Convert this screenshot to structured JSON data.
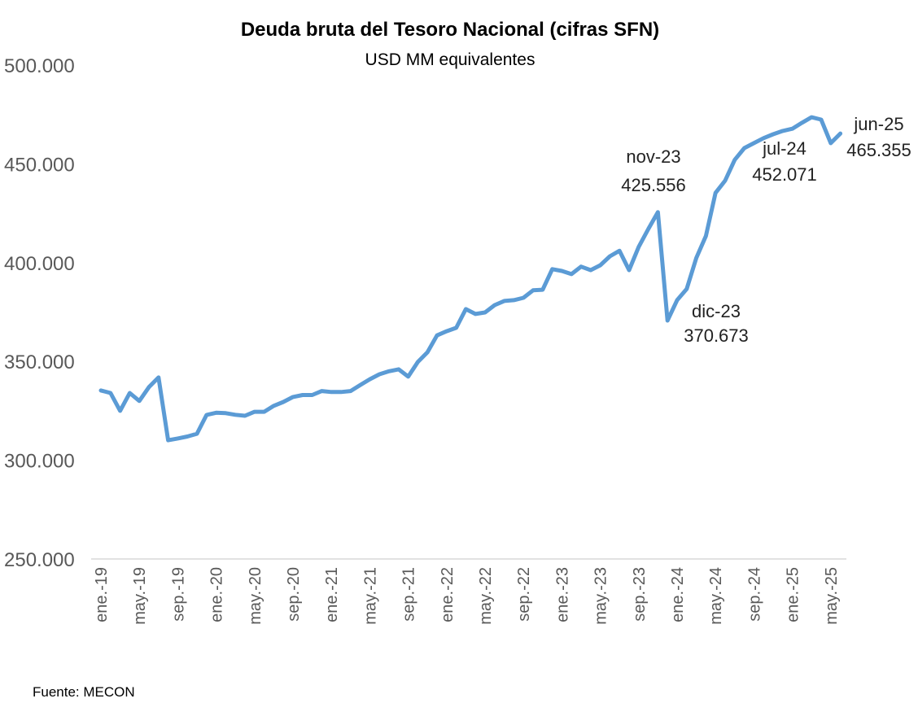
{
  "chart_data": {
    "type": "line",
    "title": "Deuda bruta del Tesoro Nacional (cifras SFN)",
    "subtitle": "USD MM equivalentes",
    "xlabel": "",
    "ylabel": "",
    "ylim": [
      250000,
      500000
    ],
    "yticks": [
      250000,
      300000,
      350000,
      400000,
      450000,
      500000
    ],
    "ytick_labels": [
      "250.000",
      "300.000",
      "350.000",
      "400.000",
      "450.000",
      "500.000"
    ],
    "grid": false,
    "x_start": "ene.-19",
    "x_end": "jun.-25",
    "xtick_every": 4,
    "xtick_labels": [
      "ene.-19",
      "may.-19",
      "sep.-19",
      "ene.-20",
      "may.-20",
      "sep.-20",
      "ene.-21",
      "may.-21",
      "sep.-21",
      "ene.-22",
      "may.-22",
      "sep.-22",
      "ene.-23",
      "may.-23",
      "sep.-23",
      "ene.-24",
      "may.-24",
      "sep.-24",
      "ene.-25",
      "may.-25"
    ],
    "series": [
      {
        "name": "Deuda bruta",
        "color": "#5B9BD5",
        "values": [
          335300,
          334000,
          325000,
          334000,
          330000,
          337000,
          341900,
          310100,
          311000,
          312000,
          313400,
          322900,
          324000,
          323800,
          323000,
          322500,
          324500,
          324500,
          327500,
          329500,
          332000,
          333000,
          333000,
          335000,
          334500,
          334500,
          335000,
          338000,
          341000,
          343500,
          345000,
          346000,
          342300,
          349700,
          354600,
          363200,
          365300,
          367000,
          376500,
          374000,
          374800,
          378500,
          380600,
          381000,
          382200,
          386000,
          386300,
          396700,
          395800,
          394200,
          398000,
          396200,
          398700,
          403200,
          406000,
          396200,
          408000,
          417000,
          425556,
          370673,
          381000,
          386700,
          402400,
          413500,
          435300,
          441500,
          452071,
          458000,
          460500,
          463000,
          465000,
          466700,
          467800,
          470800,
          473600,
          472400,
          460500,
          465355
        ]
      }
    ],
    "annotations": [
      {
        "index": 58,
        "label": "nov-23",
        "value_text": "425.556"
      },
      {
        "index": 59,
        "label": "dic-23",
        "value_text": "370.673"
      },
      {
        "index": 66,
        "label": "jul-24",
        "value_text": "452.071"
      },
      {
        "index": 77,
        "label": "jun-25",
        "value_text": "465.355"
      }
    ],
    "source": "Fuente: MECON"
  }
}
